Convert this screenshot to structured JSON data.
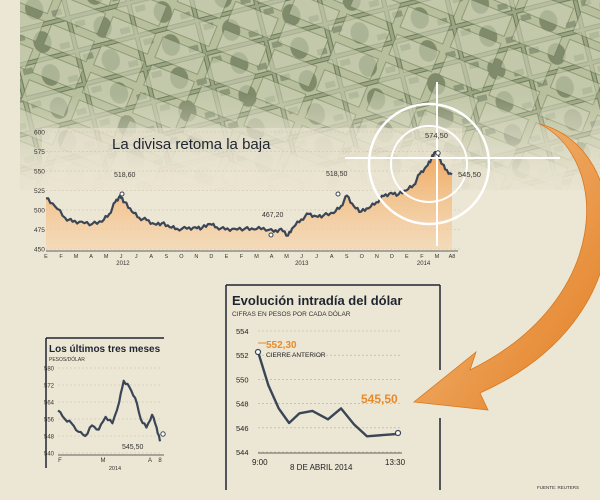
{
  "colors": {
    "background": "#ece6d4",
    "money_green": "#8c9a78",
    "line": "#3a4656",
    "area_orange": "#f0a050",
    "accent_orange": "#e98a2a",
    "crosshair": "#ffffff"
  },
  "icons": [
    "crosshair-target-icon",
    "curved-arrow-icon"
  ],
  "chart_data": [
    {
      "type": "area",
      "title": "La divisa retoma la baja",
      "ylim": [
        450,
        600
      ],
      "yticks": [
        "600",
        "575",
        "550",
        "525",
        "500",
        "475",
        "450"
      ],
      "month_labels": [
        "E",
        "F",
        "M",
        "A",
        "M",
        "J",
        "J",
        "A",
        "S",
        "O",
        "N",
        "D",
        "E",
        "F",
        "M",
        "A",
        "M",
        "J",
        "J",
        "A",
        "S",
        "O",
        "N",
        "D",
        "E",
        "F",
        "M",
        "A8"
      ],
      "year_labels": [
        "2012",
        "2013",
        "2014"
      ],
      "x_start": "2012-01-02",
      "x_end": "2014-04-08",
      "series": [
        {
          "values": [
            [
              "2012-01-02",
              515
            ],
            [
              "2012-01-20",
              505
            ],
            [
              "2012-02-10",
              490
            ],
            [
              "2012-02-25",
              485
            ],
            [
              "2012-03-15",
              485
            ],
            [
              "2012-04-05",
              482
            ],
            [
              "2012-04-25",
              485
            ],
            [
              "2012-05-10",
              495
            ],
            [
              "2012-05-22",
              510
            ],
            [
              "2012-06-01",
              518.6
            ],
            [
              "2012-06-10",
              510
            ],
            [
              "2012-06-25",
              498
            ],
            [
              "2012-07-10",
              490
            ],
            [
              "2012-07-25",
              487
            ],
            [
              "2012-08-10",
              482
            ],
            [
              "2012-08-25",
              483
            ],
            [
              "2012-09-10",
              478
            ],
            [
              "2012-09-25",
              476
            ],
            [
              "2012-10-15",
              476
            ],
            [
              "2012-11-01",
              478
            ],
            [
              "2012-11-15",
              477
            ],
            [
              "2012-12-01",
              482
            ],
            [
              "2012-12-15",
              478
            ],
            [
              "2013-01-01",
              475
            ],
            [
              "2013-01-20",
              476
            ],
            [
              "2013-02-10",
              476
            ],
            [
              "2013-03-01",
              475
            ],
            [
              "2013-03-20",
              477
            ],
            [
              "2013-04-10",
              472
            ],
            [
              "2013-04-25",
              476
            ],
            [
              "2013-05-09",
              467.2
            ],
            [
              "2013-05-20",
              478
            ],
            [
              "2013-06-05",
              488
            ],
            [
              "2013-06-20",
              495
            ],
            [
              "2013-07-05",
              492
            ],
            [
              "2013-07-20",
              493
            ],
            [
              "2013-08-10",
              496
            ],
            [
              "2013-08-25",
              505
            ],
            [
              "2013-09-06",
              518.5
            ],
            [
              "2013-09-20",
              505
            ],
            [
              "2013-10-05",
              498
            ],
            [
              "2013-10-20",
              502
            ],
            [
              "2013-11-05",
              510
            ],
            [
              "2013-11-20",
              518
            ],
            [
              "2013-12-05",
              522
            ],
            [
              "2013-12-20",
              520
            ],
            [
              "2014-01-05",
              525
            ],
            [
              "2014-01-20",
              532
            ],
            [
              "2014-02-01",
              546
            ],
            [
              "2014-02-15",
              556
            ],
            [
              "2014-02-25",
              566
            ],
            [
              "2014-03-05",
              574.5
            ],
            [
              "2014-03-15",
              565
            ],
            [
              "2014-03-25",
              552
            ],
            [
              "2014-04-08",
              545.5
            ]
          ]
        }
      ],
      "annotations": [
        "518,60",
        "467,20",
        "518,50",
        "574,50",
        "545,50"
      ]
    },
    {
      "type": "line",
      "title": "Los últimos tres meses",
      "ylabel": "PESOS/DÓLAR",
      "ylim": [
        540,
        580
      ],
      "yticks": [
        "580",
        "572",
        "564",
        "556",
        "548",
        "540"
      ],
      "x_labels": [
        "F",
        "M",
        "A",
        "8"
      ],
      "x_sublabel": "2014",
      "series": [
        {
          "values": [
            [
              "2014-01-08",
              560
            ],
            [
              "2014-01-14",
              556
            ],
            [
              "2014-01-20",
              554
            ],
            [
              "2014-01-26",
              550
            ],
            [
              "2014-02-01",
              548
            ],
            [
              "2014-02-07",
              553
            ],
            [
              "2014-02-13",
              551
            ],
            [
              "2014-02-19",
              557
            ],
            [
              "2014-02-25",
              554
            ],
            [
              "2014-03-03",
              564
            ],
            [
              "2014-03-07",
              574
            ],
            [
              "2014-03-12",
              571
            ],
            [
              "2014-03-17",
              566
            ],
            [
              "2014-03-22",
              556
            ],
            [
              "2014-03-27",
              552
            ],
            [
              "2014-04-01",
              558
            ],
            [
              "2014-04-05",
              552
            ],
            [
              "2014-04-08",
              545.5
            ]
          ]
        }
      ],
      "annotations": [
        "545,50"
      ]
    },
    {
      "type": "line",
      "title": "Evolución intradía del dólar",
      "subtitle": "CIFRAS EN PESOS POR CADA DÓLAR",
      "ylim": [
        544,
        554
      ],
      "yticks": [
        "554",
        "552",
        "550",
        "548",
        "546",
        "544"
      ],
      "x_labels": [
        "9:00",
        "13:30"
      ],
      "xlabel": "8 DE ABRIL 2014",
      "series": [
        {
          "values": [
            [
              "09:00",
              552.3
            ],
            [
              "09:20",
              549.5
            ],
            [
              "09:40",
              547.6
            ],
            [
              "10:00",
              546.4
            ],
            [
              "10:20",
              547.2
            ],
            [
              "10:45",
              547.4
            ],
            [
              "11:15",
              546.7
            ],
            [
              "11:40",
              547.6
            ],
            [
              "12:05",
              546.3
            ],
            [
              "12:30",
              545.3
            ],
            [
              "13:00",
              545.4
            ],
            [
              "13:30",
              545.5
            ]
          ]
        }
      ],
      "annotations": [
        "552,30",
        "CIERRE ANTERIOR",
        "545,50"
      ]
    }
  ],
  "source": "FUENTE: REUTERS"
}
